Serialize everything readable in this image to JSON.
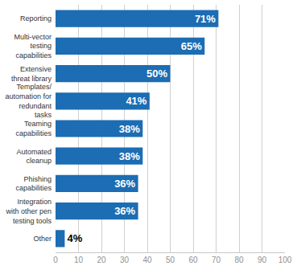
{
  "chart_data": {
    "type": "bar",
    "orientation": "horizontal",
    "categories": [
      "Reporting",
      "Multi-vector testing capabilities",
      "Extensive threat library",
      "Templates/automation for redundant tasks",
      "Teaming capabilities",
      "Automated cleanup",
      "Phishing capabilities",
      "Integration with other pen testing tools",
      "Other"
    ],
    "values": [
      71,
      65,
      50,
      41,
      38,
      38,
      36,
      36,
      4
    ],
    "value_labels": [
      "71%",
      "65%",
      "50%",
      "41%",
      "38%",
      "38%",
      "36%",
      "36%",
      "4%"
    ],
    "color": "#1c6db3",
    "xlim": [
      0,
      100
    ],
    "xticks": [
      0,
      10,
      20,
      30,
      40,
      50,
      60,
      70,
      80,
      90,
      100
    ],
    "grid": true,
    "data_labels": true
  }
}
